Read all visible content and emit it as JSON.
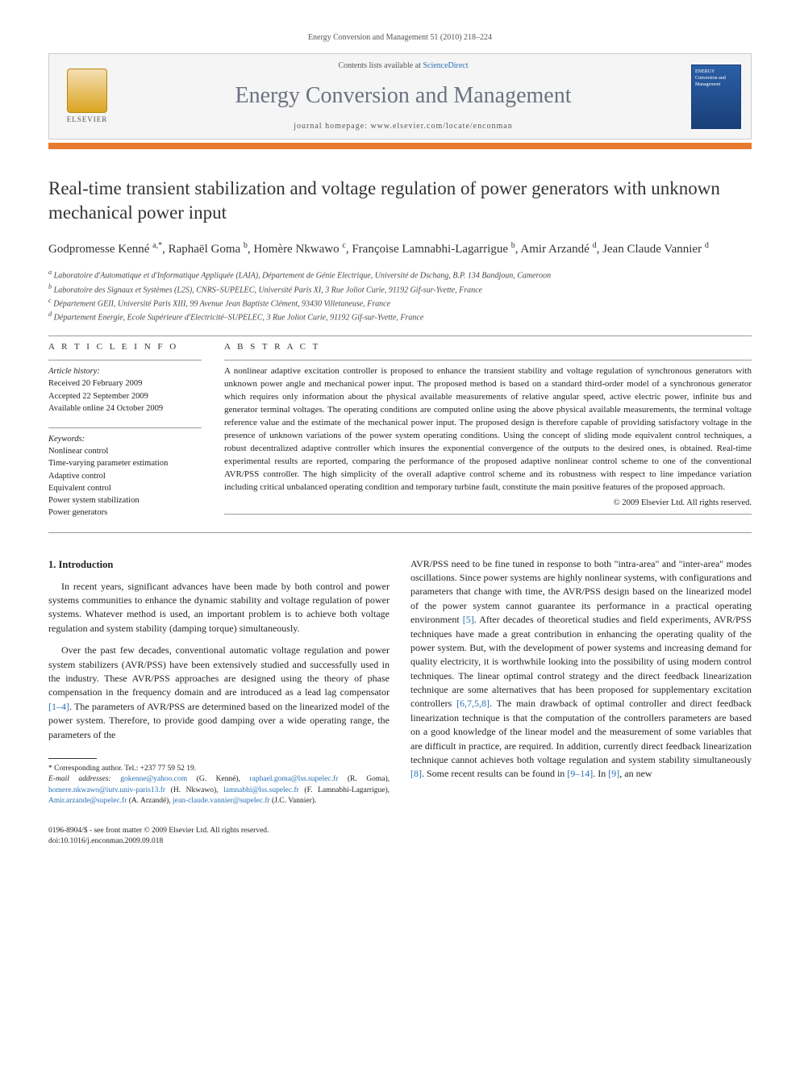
{
  "header": {
    "citation": "Energy Conversion and Management 51 (2010) 218–224",
    "contents_prefix": "Contents lists available at ",
    "contents_link": "ScienceDirect",
    "journal_name": "Energy Conversion and Management",
    "homepage_prefix": "journal homepage: ",
    "homepage_url": "www.elsevier.com/locate/enconman",
    "elsevier": "ELSEVIER",
    "cover_title": "ENERGY Conversion and Management"
  },
  "colors": {
    "accent_bar": "#e8792f",
    "link": "#2a6fb5",
    "journal_gray": "#6b7280",
    "cover_bg": "#2b5fa8"
  },
  "article": {
    "title": "Real-time transient stabilization and voltage regulation of power generators with unknown mechanical power input",
    "authors_html": "Godpromesse Kenné <sup>a,*</sup>, Raphaël Goma <sup>b</sup>, Homère Nkwawo <sup>c</sup>, Françoise Lamnabhi-Lagarrigue <sup>b</sup>, Amir Arzandé <sup>d</sup>, Jean Claude Vannier <sup>d</sup>",
    "affiliations": [
      "a Laboratoire d'Automatique et d'Informatique Appliquée (LAIA), Département de Génie Electrique, Université de Dschang, B.P. 134 Bandjoun, Cameroon",
      "b Laboratoire des Signaux et Systèmes (L2S), CNRS–SUPELEC, Université Paris XI, 3 Rue Joliot Curie, 91192 Gif-sur-Yvette, France",
      "c Département GEII, Université Paris XIII, 99 Avenue Jean Baptiste Clément, 93430 Villetaneuse, France",
      "d Département Energie, Ecole Supérieure d'Electricité–SUPELEC, 3 Rue Joliot Curie, 91192 Gif-sur-Yvette, France"
    ]
  },
  "info": {
    "heading": "A R T I C L E   I N F O",
    "history_label": "Article history:",
    "history": [
      "Received 20 February 2009",
      "Accepted 22 September 2009",
      "Available online 24 October 2009"
    ],
    "keywords_label": "Keywords:",
    "keywords": [
      "Nonlinear control",
      "Time-varying parameter estimation",
      "Adaptive control",
      "Equivalent control",
      "Power system stabilization",
      "Power generators"
    ]
  },
  "abstract": {
    "heading": "A B S T R A C T",
    "text": "A nonlinear adaptive excitation controller is proposed to enhance the transient stability and voltage regulation of synchronous generators with unknown power angle and mechanical power input. The proposed method is based on a standard third-order model of a synchronous generator which requires only information about the physical available measurements of relative angular speed, active electric power, infinite bus and generator terminal voltages. The operating conditions are computed online using the above physical available measurements, the terminal voltage reference value and the estimate of the mechanical power input. The proposed design is therefore capable of providing satisfactory voltage in the presence of unknown variations of the power system operating conditions. Using the concept of sliding mode equivalent control techniques, a robust decentralized adaptive controller which insures the exponential convergence of the outputs to the desired ones, is obtained. Real-time experimental results are reported, comparing the performance of the proposed adaptive nonlinear control scheme to one of the conventional AVR/PSS controller. The high simplicity of the overall adaptive control scheme and its robustness with respect to line impedance variation including critical unbalanced operating condition and temporary turbine fault, constitute the main positive features of the proposed approach.",
    "copyright": "© 2009 Elsevier Ltd. All rights reserved."
  },
  "body": {
    "section_heading": "1. Introduction",
    "left_paras": [
      "In recent years, significant advances have been made by both control and power systems communities to enhance the dynamic stability and voltage regulation of power systems. Whatever method is used, an important problem is to achieve both voltage regulation and system stability (damping torque) simultaneously.",
      "Over the past few decades, conventional automatic voltage regulation and power system stabilizers (AVR/PSS) have been extensively studied and successfully used in the industry. These AVR/PSS approaches are designed using the theory of phase compensation in the frequency domain and are introduced as a lead lag compensator [1–4]. The parameters of AVR/PSS are determined based on the linearized model of the power system. Therefore, to provide good damping over a wide operating range, the parameters of the"
    ],
    "right_para": "AVR/PSS need to be fine tuned in response to both \"intra-area\" and \"inter-area\" modes oscillations. Since power systems are highly nonlinear systems, with configurations and parameters that change with time, the AVR/PSS design based on the linearized model of the power system cannot guarantee its performance in a practical operating environment [5]. After decades of theoretical studies and field experiments, AVR/PSS techniques have made a great contribution in enhancing the operating quality of the power system. But, with the development of power systems and increasing demand for quality electricity, it is worthwhile looking into the possibility of using modern control techniques. The linear optimal control strategy and the direct feedback linearization technique are some alternatives that has been proposed for supplementary excitation controllers [6,7,5,8]. The main drawback of optimal controller and direct feedback linearization technique is that the computation of the controllers parameters are based on a good knowledge of the linear model and the measurement of some variables that are difficult in practice, are required. In addition, currently direct feedback linearization technique cannot achieves both voltage regulation and system stability simultaneously [8]. Some recent results can be found in [9–14]. In [9], an new"
  },
  "footnotes": {
    "corr": "* Corresponding author. Tel.: +237 77 59 52 19.",
    "email_label": "E-mail addresses:",
    "emails": "gokenne@yahoo.com (G. Kenné), raphael.goma@lss.supelec.fr (R. Goma), homere.nkwawo@iutv.univ-paris13.fr (H. Nkwawo), lamnabhi@lss.supelec.fr (F. Lamnabhi-Lagarrigue), Amir.arzande@supelec.fr (A. Arzandé), jean-claude.vannier@supelec.fr (J.C. Vannier)."
  },
  "footer": {
    "line1": "0196-8904/$ - see front matter © 2009 Elsevier Ltd. All rights reserved.",
    "line2": "doi:10.1016/j.enconman.2009.09.018"
  }
}
